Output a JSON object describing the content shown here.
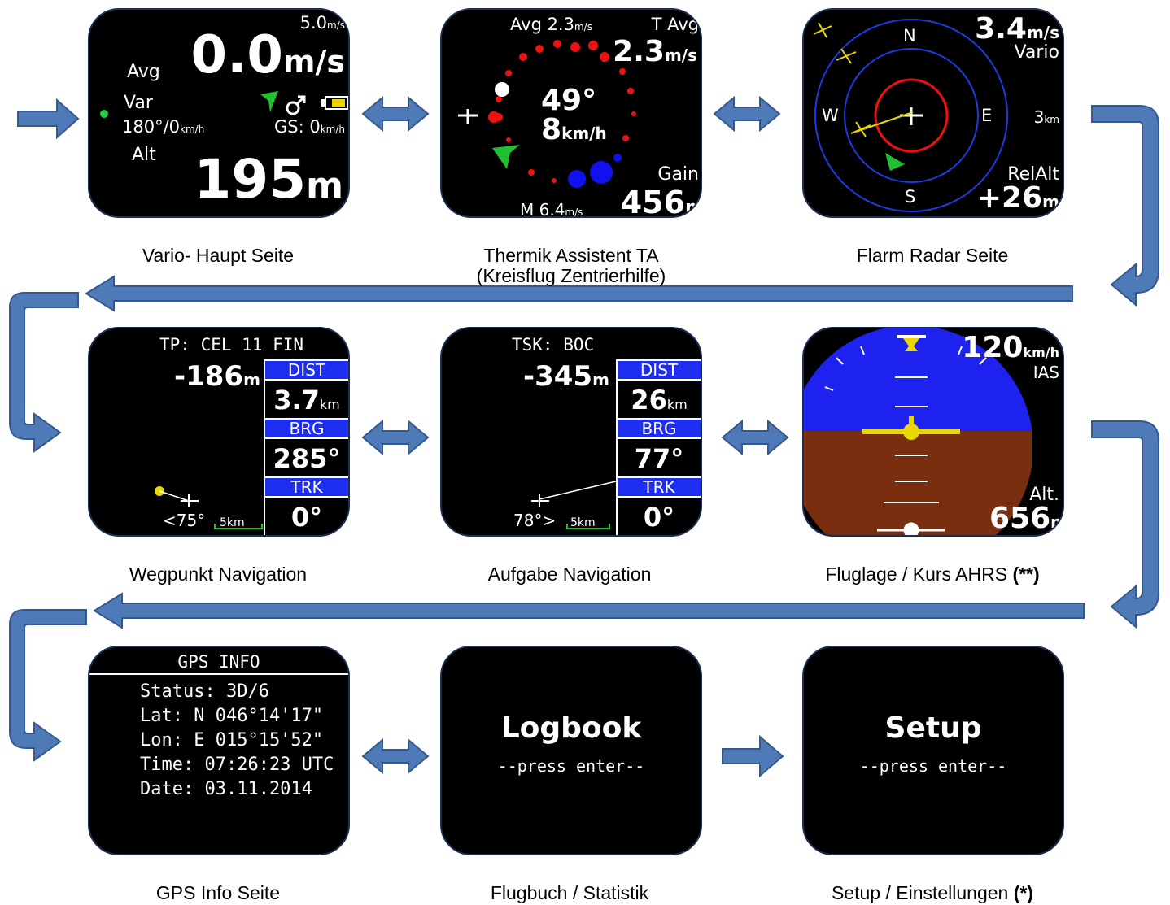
{
  "captions": {
    "vario": "Vario- Haupt Seite",
    "thermal_line1": "Thermik Assistent TA",
    "thermal_line2": "(Kreisflug Zentrierhilfe)",
    "flarm": "Flarm Radar Seite",
    "waypoint": "Wegpunkt Navigation",
    "task": "Aufgabe Navigation",
    "ahrs": "Fluglage / Kurs AHRS ",
    "ahrs_mark": "(**)",
    "gps": "GPS Info Seite",
    "logbook": "Flugbuch / Statistik",
    "setup": "Setup / Einstellungen ",
    "setup_mark": "(*)"
  },
  "vario": {
    "scale": "5.0",
    "scale_unit": "m/s",
    "value": "0.0",
    "value_unit": "m/s",
    "avg": "Avg",
    "var": "Var",
    "wind": "180°/0",
    "wind_unit": "km/h",
    "gs": "GS: 0",
    "gs_unit": "km/h",
    "alt": "Alt",
    "altitude": "195",
    "altitude_unit": "m"
  },
  "thermal": {
    "avg": "Avg 2.3",
    "avg_unit": "m/s",
    "t_avg": "T Avg",
    "t_avg_value": "2.3",
    "t_avg_unit": "m/s",
    "angle": "49°",
    "speed": "8",
    "speed_unit": "km/h",
    "gain": "Gain",
    "gain_value": "456",
    "gain_unit": "m",
    "max": "M 6.4",
    "max_unit": "m/s"
  },
  "flarm": {
    "north": "N",
    "south": "S",
    "east": "E",
    "west": "W",
    "vario_value": "3.4",
    "vario_unit": "m/s",
    "vario_label": "Vario",
    "range": "3",
    "range_unit": "km",
    "relalt_label": "RelAlt",
    "relalt_value": "+26",
    "relalt_unit": "m"
  },
  "waypoint": {
    "title": "TP: CEL 11 FIN",
    "rel_alt": "-186",
    "rel_alt_unit": "m",
    "dist_label": "DIST",
    "dist_value": "3.7",
    "dist_unit": "km",
    "brg_label": "BRG",
    "brg_value": "285°",
    "trk_label": "TRK",
    "trk_value": "0°",
    "angle": "<75°",
    "scale": "5km"
  },
  "task": {
    "title": "TSK: BOC",
    "rel_alt": "-345",
    "rel_alt_unit": "m",
    "dist_label": "DIST",
    "dist_value": "26",
    "dist_unit": "km",
    "brg_label": "BRG",
    "brg_value": "77°",
    "trk_label": "TRK",
    "trk_value": "0°",
    "angle": "78°>",
    "scale": "5km"
  },
  "ahrs": {
    "ias_value": "120",
    "ias_unit": "km/h",
    "ias_label": "IAS",
    "alt_label": "Alt.",
    "alt_value": "656",
    "alt_unit": "m"
  },
  "gps": {
    "title": "GPS INFO",
    "status": "Status: 3D/6",
    "lat": "Lat: N 046°14'17\"",
    "lon": "Lon: E 015°15'52\"",
    "time": "Time: 07:26:23 UTC",
    "date": "Date: 03.11.2014"
  },
  "logbook": {
    "title": "Logbook",
    "hint": "--press enter--"
  },
  "setup": {
    "title": "Setup",
    "hint": "--press enter--"
  },
  "colors": {
    "arrow_fill": "#4f7ab8",
    "arrow_stroke": "#36588a",
    "sky": "#1e22ee",
    "ground": "#7a2e10",
    "box_header": "#1d2ef0"
  }
}
